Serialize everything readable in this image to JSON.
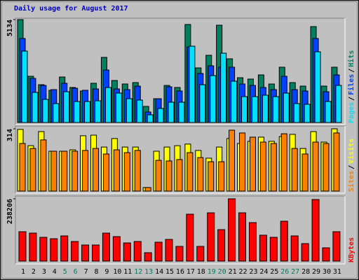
{
  "chart_data": [
    {
      "type": "bar",
      "title": "Daily usage for August 2017",
      "ylim": [
        0,
        5134
      ],
      "yticks": [
        5134
      ],
      "legend_separator": "/",
      "series": [
        {
          "name": "Hits",
          "color": "#008060",
          "values": [
            5134,
            2305,
            1886,
            1607,
            2270,
            1747,
            1572,
            1956,
            3249,
            2096,
            1921,
            1991,
            803,
            1188,
            1851,
            1747,
            4890,
            2724,
            3353,
            4855,
            3178,
            2235,
            2166,
            2375,
            1921,
            2759,
            1991,
            1816,
            4785,
            1816,
            2759
          ]
        },
        {
          "name": "Files",
          "color": "#0040ff",
          "values": [
            4191,
            2200,
            1851,
            1642,
            1956,
            1711,
            1607,
            1676,
            2619,
            1676,
            1642,
            1816,
            524,
            1188,
            1781,
            1572,
            3772,
            2445,
            2829,
            2759,
            2759,
            1921,
            1851,
            1746,
            1642,
            2305,
            1642,
            1572,
            4191,
            1537,
            2375
          ]
        },
        {
          "name": "Pages",
          "color": "#00e0ff",
          "values": [
            3563,
            1502,
            1153,
            943,
            1537,
            1048,
            1048,
            1083,
            1746,
            1467,
            1188,
            1118,
            384,
            699,
            1013,
            1013,
            3807,
            1886,
            2340,
            3458,
            2061,
            1292,
            1292,
            1362,
            1292,
            1467,
            943,
            908,
            3528,
            1048,
            1851
          ]
        }
      ]
    },
    {
      "type": "bar",
      "ylim": [
        0,
        314
      ],
      "yticks": [
        314
      ],
      "legend_separator": "/",
      "series": [
        {
          "name": "Visits",
          "color": "#ffff00",
          "values": [
            311,
            229,
            300,
            201,
            201,
            208,
            279,
            282,
            222,
            265,
            222,
            222,
            18,
            201,
            222,
            229,
            237,
            205,
            166,
            222,
            265,
            240,
            251,
            272,
            251,
            275,
            286,
            215,
            300,
            247,
            314
          ]
        },
        {
          "name": "Sites",
          "color": "#ff8000",
          "values": [
            240,
            215,
            258,
            201,
            201,
            201,
            205,
            215,
            187,
            208,
            194,
            205,
            18,
            155,
            152,
            159,
            194,
            169,
            148,
            148,
            307,
            293,
            272,
            247,
            240,
            289,
            215,
            187,
            247,
            240,
            293
          ]
        }
      ]
    },
    {
      "type": "bar",
      "ylim": [
        0,
        238206
      ],
      "yticks": [
        238206
      ],
      "categories": [
        "1",
        "2",
        "3",
        "4",
        "5",
        "6",
        "7",
        "8",
        "9",
        "10",
        "11",
        "12",
        "13",
        "14",
        "15",
        "16",
        "17",
        "18",
        "19",
        "20",
        "21",
        "22",
        "23",
        "24",
        "25",
        "26",
        "27",
        "28",
        "29",
        "30",
        "31"
      ],
      "category_colors": [
        "#000000",
        "#000000",
        "#000000",
        "#000000",
        "#008060",
        "#008060",
        "#000000",
        "#000000",
        "#000000",
        "#000000",
        "#000000",
        "#008060",
        "#008060",
        "#000000",
        "#000000",
        "#000000",
        "#000000",
        "#000000",
        "#008060",
        "#008060",
        "#000000",
        "#000000",
        "#000000",
        "#000000",
        "#000000",
        "#008060",
        "#008060",
        "#000000",
        "#000000",
        "#000000",
        "#000000"
      ],
      "series": [
        {
          "name": "KBytes",
          "color": "#ff0000",
          "values": [
            112413,
            107060,
            91001,
            85648,
            96354,
            74942,
            61560,
            61560,
            107060,
            93678,
            69589,
            74942,
            32118,
            72266,
            82972,
            56207,
            179326,
            56207,
            184679,
            120443,
            238206,
            184679,
            147208,
            99031,
            91001,
            152561,
            96354,
            66913,
            235530,
            50854,
            112413
          ]
        }
      ]
    }
  ]
}
